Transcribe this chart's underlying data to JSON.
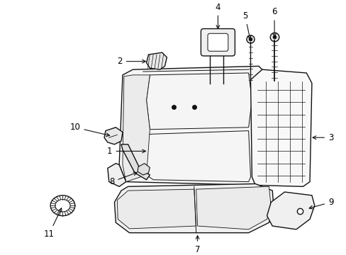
{
  "background_color": "#ffffff",
  "line_color": "#111111",
  "label_color": "#000000",
  "arrow_color": "#111111",
  "figsize": [
    4.89,
    3.6
  ],
  "dpi": 100
}
